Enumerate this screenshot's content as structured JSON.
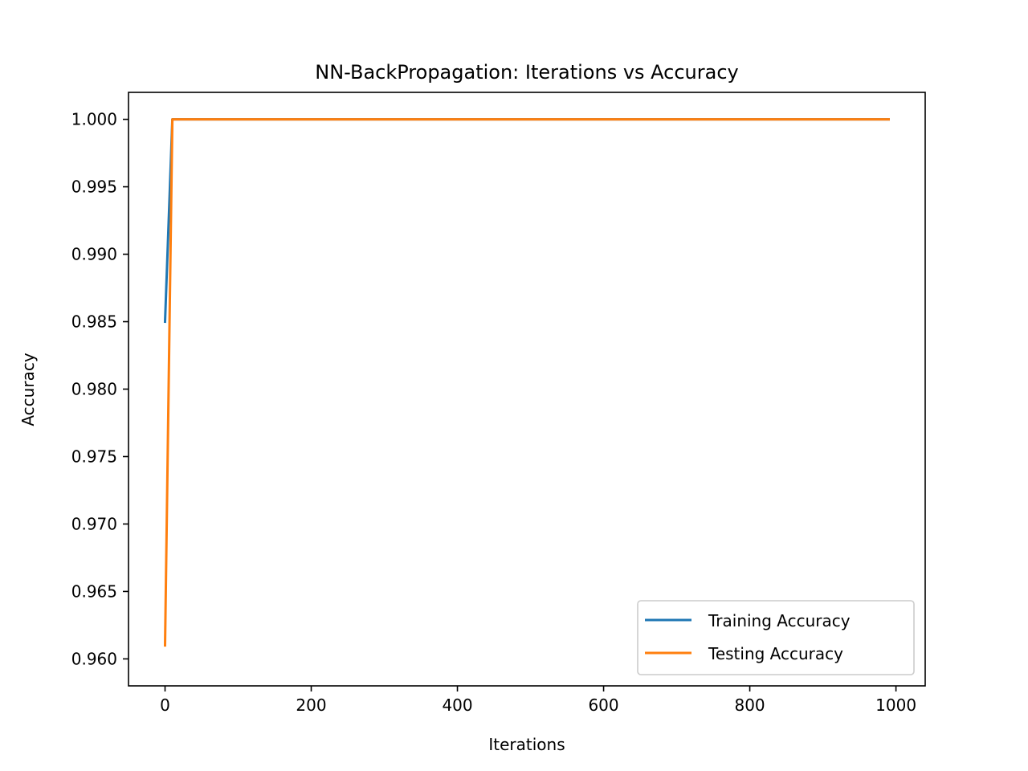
{
  "chart_data": {
    "type": "line",
    "title": "NN-BackPropagation: Iterations vs Accuracy",
    "xlabel": "Iterations",
    "ylabel": "Accuracy",
    "xlim": [
      -50,
      1040
    ],
    "ylim": [
      0.958,
      1.002
    ],
    "xticks": [
      0,
      200,
      400,
      600,
      800,
      1000
    ],
    "yticks": [
      0.96,
      0.965,
      0.97,
      0.975,
      0.98,
      0.985,
      0.99,
      0.995,
      1.0
    ],
    "ytick_labels": [
      "0.960",
      "0.965",
      "0.970",
      "0.975",
      "0.980",
      "0.985",
      "0.990",
      "0.995",
      "1.000"
    ],
    "grid": false,
    "legend_position": "lower-right",
    "series": [
      {
        "name": "Training Accuracy",
        "color": "#1f77b4",
        "x": [
          0,
          10,
          990
        ],
        "y": [
          0.985,
          1.0,
          1.0
        ]
      },
      {
        "name": "Testing Accuracy",
        "color": "#ff7f0e",
        "x": [
          0,
          10,
          990
        ],
        "y": [
          0.961,
          1.0,
          1.0
        ]
      }
    ]
  }
}
